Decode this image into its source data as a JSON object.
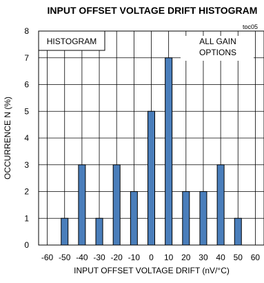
{
  "chart_data": {
    "type": "bar",
    "title": "INPUT OFFSET VOLTAGE DRIFT HISTOGRAM",
    "figure_number": "toc05",
    "xlabel": "INPUT OFFSET VOLTAGE DRIFT (nV/°C)",
    "ylabel": "OCCURRENCE N (%)",
    "annotations": {
      "left": "HISTOGRAM",
      "right_line1": "ALL GAIN",
      "right_line2": "OPTIONS"
    },
    "xlim": [
      -65,
      65
    ],
    "ylim": [
      0,
      8
    ],
    "xticks": [
      -60,
      -50,
      -40,
      -30,
      -20,
      -10,
      0,
      10,
      20,
      30,
      40,
      50,
      60
    ],
    "xtick_labels": [
      "-60",
      "-50",
      "-40",
      "-30",
      "-20",
      "-10",
      "0",
      "10",
      "20",
      "30",
      "40",
      "50",
      "60"
    ],
    "yticks": [
      0,
      1,
      2,
      3,
      4,
      5,
      6,
      7,
      8
    ],
    "ytick_labels": [
      "0",
      "1",
      "2",
      "3",
      "4",
      "5",
      "6",
      "7",
      "8"
    ],
    "grid": true,
    "bar_color": "#4a7ebb",
    "categories": [
      -60,
      -50,
      -40,
      -30,
      -20,
      -10,
      0,
      10,
      20,
      30,
      40,
      50,
      60
    ],
    "values": [
      0,
      1,
      3,
      1,
      3,
      2,
      5,
      7,
      2,
      2,
      3,
      1,
      0
    ]
  }
}
